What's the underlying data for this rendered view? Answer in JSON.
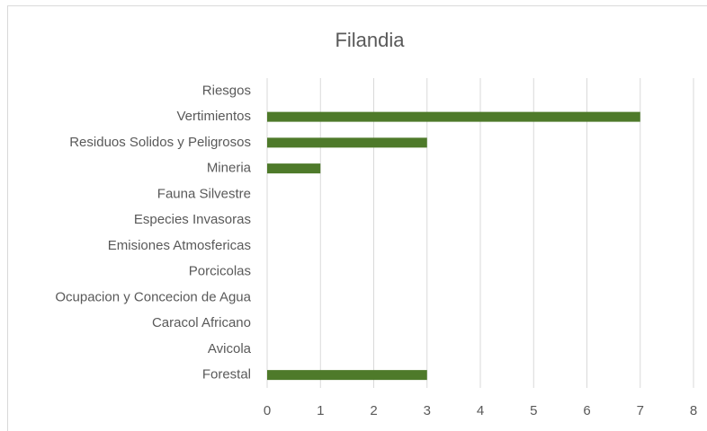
{
  "chart_data": {
    "type": "barh",
    "title": "Filandia",
    "categories": [
      "Riesgos",
      "Vertimientos",
      "Residuos Solidos y Peligrosos",
      "Mineria",
      "Fauna Silvestre",
      "Especies Invasoras",
      "Emisiones Atmosfericas",
      "Porcicolas",
      "Ocupacion y Concecion de Agua",
      "Caracol Africano",
      "Avicola",
      "Forestal"
    ],
    "values": [
      0,
      7,
      3,
      1,
      0,
      0,
      0,
      0,
      0,
      0,
      0,
      3
    ],
    "color": "#4e7a2a",
    "xlim": [
      0,
      8
    ],
    "xticks": [
      0,
      1,
      2,
      3,
      4,
      5,
      6,
      7,
      8
    ],
    "grid": true
  }
}
